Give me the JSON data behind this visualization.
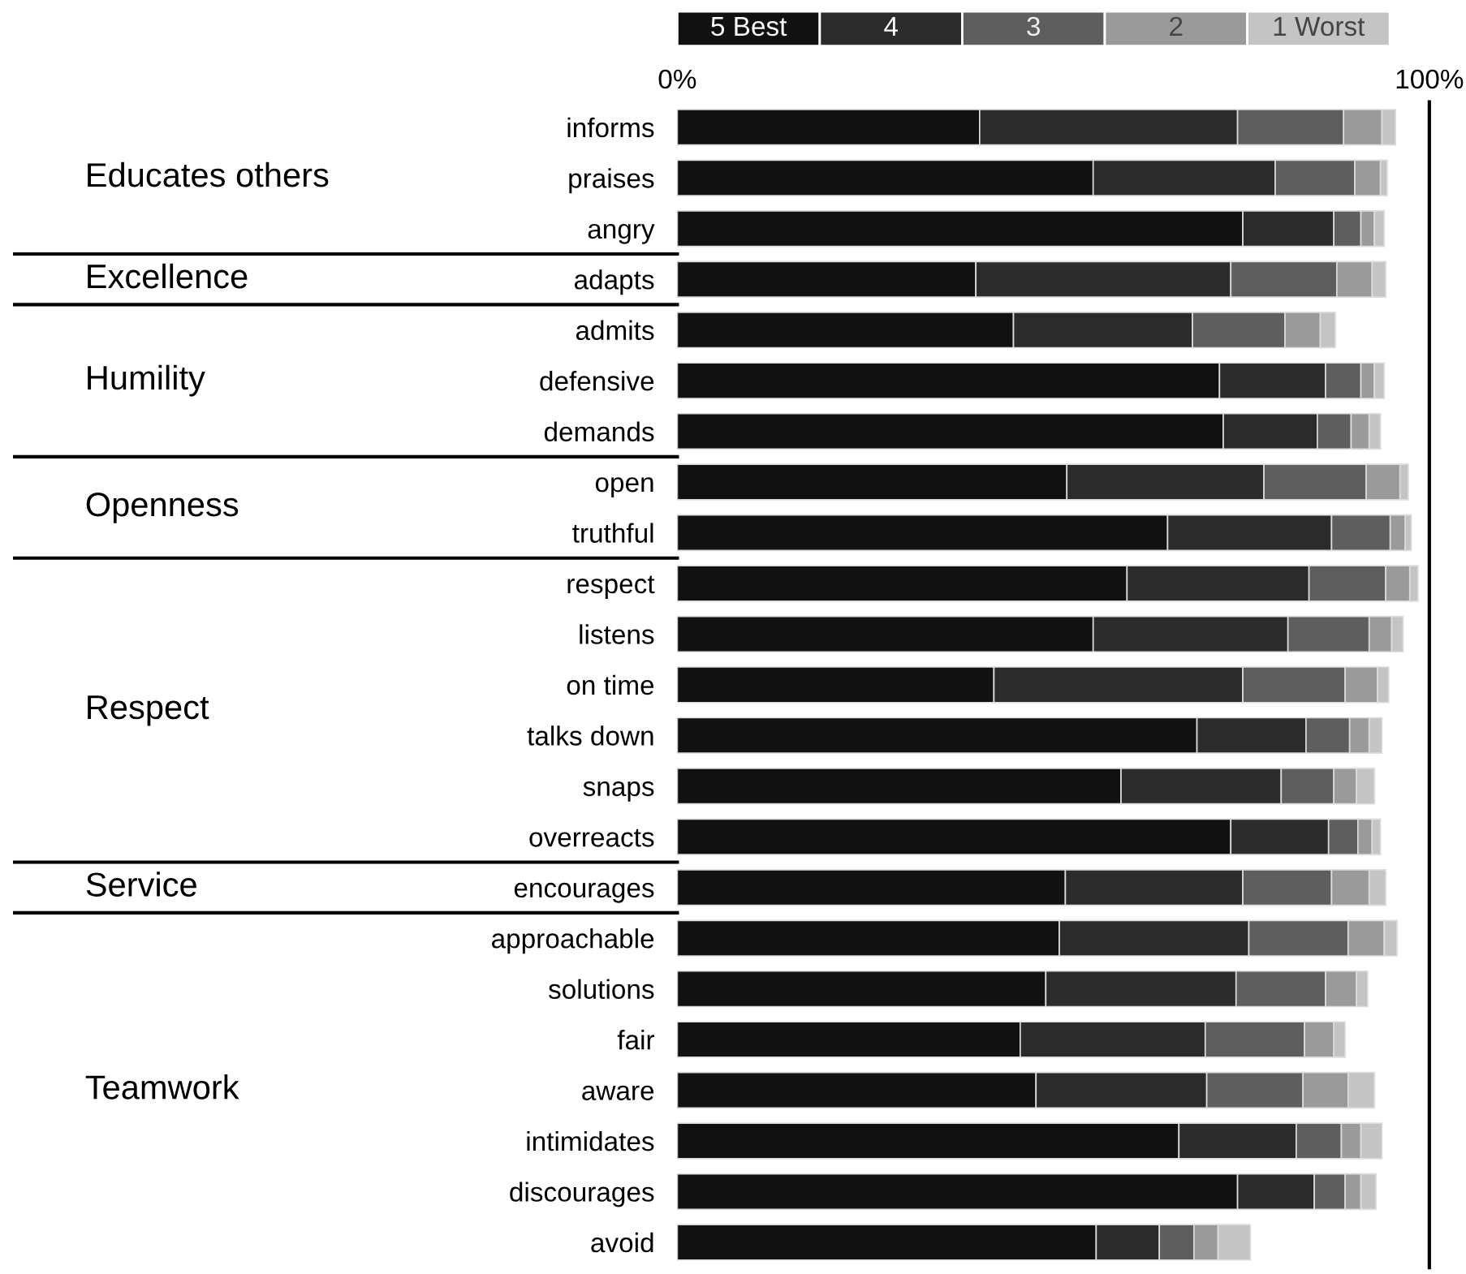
{
  "chart_data": {
    "type": "bar",
    "orientation": "horizontal",
    "stacked": true,
    "categories": [
      "informs",
      "praises",
      "angry",
      "adapts",
      "admits",
      "defensive",
      "demands",
      "open",
      "truthful",
      "respect",
      "listens",
      "on time",
      "talks down",
      "snaps",
      "overreacts",
      "encourages",
      "approachable",
      "solutions",
      "fair",
      "aware",
      "intimidates",
      "discourages",
      "avoid"
    ],
    "series": [
      {
        "name": "5 Best",
        "color": "#111111",
        "values": [
          40.2,
          55.3,
          75.2,
          39.7,
          44.7,
          72.1,
          72.6,
          51.8,
          65.2,
          59.8,
          55.3,
          42.1,
          69.1,
          59.0,
          73.6,
          51.6,
          50.8,
          49.0,
          45.6,
          47.7,
          66.7,
          74.5,
          55.7
        ]
      },
      {
        "name": "4",
        "color": "#2b2b2b",
        "values": [
          34.3,
          24.2,
          12.1,
          33.9,
          23.8,
          14.1,
          12.5,
          26.2,
          21.8,
          24.2,
          25.9,
          33.1,
          14.5,
          21.3,
          13.0,
          23.6,
          25.2,
          25.3,
          24.6,
          22.7,
          15.6,
          10.2,
          8.4
        ]
      },
      {
        "name": "3",
        "color": "#5e5e5e",
        "values": [
          14.1,
          10.6,
          3.6,
          14.1,
          12.3,
          4.7,
          4.5,
          13.6,
          7.8,
          10.2,
          10.8,
          13.6,
          5.8,
          7.0,
          3.9,
          11.8,
          13.2,
          11.9,
          13.2,
          12.8,
          6.0,
          4.1,
          4.6
        ]
      },
      {
        "name": "2",
        "color": "#9a9a9a",
        "values": [
          5.1,
          3.4,
          1.8,
          4.7,
          4.7,
          1.8,
          2.4,
          4.5,
          2.0,
          3.2,
          3.0,
          4.3,
          2.6,
          3.0,
          1.9,
          5.0,
          4.8,
          4.1,
          3.9,
          6.0,
          2.6,
          2.1,
          3.2
        ]
      },
      {
        "name": "1 Worst",
        "color": "#c4c4c4",
        "values": [
          1.8,
          0.9,
          1.3,
          1.8,
          2.0,
          1.3,
          1.5,
          1.1,
          0.8,
          1.1,
          1.5,
          1.5,
          1.7,
          2.4,
          1.1,
          2.2,
          1.7,
          1.5,
          1.5,
          3.5,
          2.8,
          2.0,
          4.3
        ]
      }
    ],
    "xlim": [
      0,
      100
    ],
    "xticks": [
      {
        "value": 0,
        "label": "0%"
      },
      {
        "value": 100,
        "label": "100%"
      }
    ],
    "legend": "top",
    "grid": false,
    "annotations": [
      "Educates others",
      "Excellence",
      "Humility",
      "Openness",
      "Respect",
      "Service",
      "Teamwork"
    ]
  }
}
